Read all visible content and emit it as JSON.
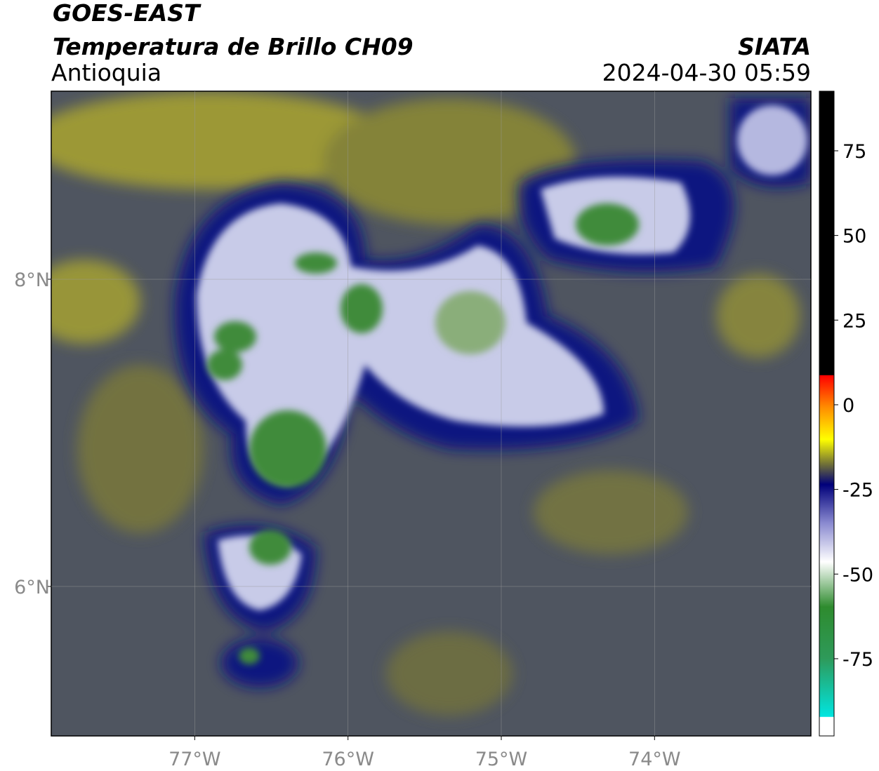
{
  "header": {
    "title": "GOES-EAST",
    "subtitle": "Temperatura de Brillo CH09",
    "region": "Antioquia",
    "source": "SIATA",
    "timestamp": "2024-04-30 05:59"
  },
  "map": {
    "xlim": [
      -77.936,
      -72.98
    ],
    "ylim": [
      5.027,
      9.224
    ],
    "xticks": [
      {
        "value": -77,
        "label": "77°W"
      },
      {
        "value": -76,
        "label": "76°W"
      },
      {
        "value": -75,
        "label": "75°W"
      },
      {
        "value": -74,
        "label": "74°W"
      }
    ],
    "yticks": [
      {
        "value": 8,
        "label": "8°N"
      },
      {
        "value": 6,
        "label": "6°N"
      }
    ]
  },
  "colorbar": {
    "lim": [
      -97.8,
      92.6
    ],
    "ticks": [
      75,
      50,
      25,
      0,
      -25,
      -50,
      -75
    ]
  }
}
